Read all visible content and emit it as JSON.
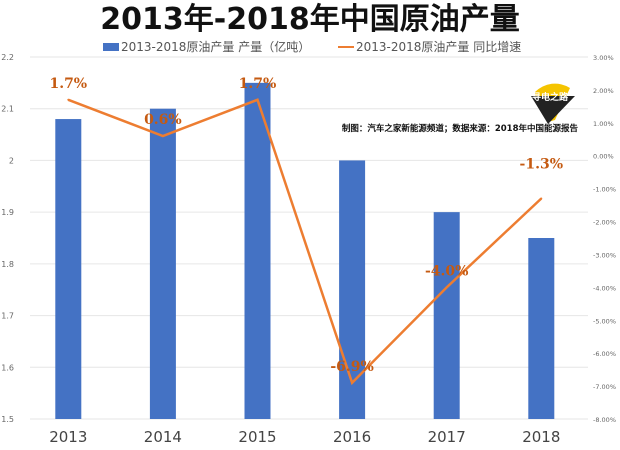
{
  "chart_data": {
    "type": "bar+line",
    "title": "2013年-2018年中国原油产量",
    "categories": [
      "2013",
      "2014",
      "2015",
      "2016",
      "2017",
      "2018"
    ],
    "series": [
      {
        "name": "2013-2018原油产量 产量（亿吨）",
        "type": "bar",
        "axis": "left",
        "color": "#4472C4",
        "values": [
          2.08,
          2.1,
          2.15,
          2.0,
          1.9,
          1.85
        ]
      },
      {
        "name": "2013-2018原油产量 同比增速",
        "type": "line",
        "axis": "right",
        "color": "#ED7D31",
        "values": [
          1.7,
          0.6,
          1.7,
          -6.9,
          -4.0,
          -1.3
        ],
        "labels": [
          "1.7%",
          "0.6%",
          "1.7%",
          "-6.9%",
          "-4.0%",
          "-1.3%"
        ]
      }
    ],
    "ylim_left": [
      1.5,
      2.2
    ],
    "yticks_left": [
      "1.5",
      "1.6",
      "1.7",
      "1.8",
      "1.9",
      "2",
      "2.1",
      "2.2"
    ],
    "ylim_right": [
      -8,
      3
    ],
    "yticks_right": [
      "-8.00%",
      "-7.00%",
      "-6.00%",
      "-5.00%",
      "-4.00%",
      "-3.00%",
      "-2.00%",
      "-1.00%",
      "0.00%",
      "1.00%",
      "2.00%",
      "3.00%"
    ],
    "grid": true,
    "legend": "top",
    "annotation": "制图：汽车之家新能源频道；数据来源：2018年中国能源报告",
    "logo_text": "寻电之路"
  }
}
